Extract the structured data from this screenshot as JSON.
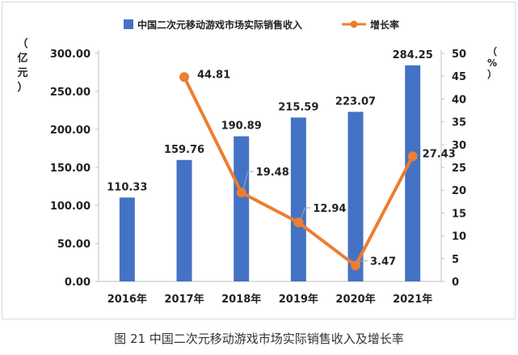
{
  "caption": "图 21 中国二次元移动游戏市场实际销售收入及增长率",
  "chart_data": {
    "type": "bar+line",
    "categories": [
      "2016年",
      "2017年",
      "2018年",
      "2019年",
      "2020年",
      "2021年"
    ],
    "series": [
      {
        "name": "中国二次元移动游戏市场实际销售收入",
        "type": "bar",
        "axis": "left",
        "values": [
          110.33,
          159.76,
          190.89,
          215.59,
          223.07,
          284.25
        ],
        "labels": [
          "110.33",
          "159.76",
          "190.89",
          "215.59",
          "223.07",
          "284.25"
        ]
      },
      {
        "name": "增长率",
        "type": "line",
        "axis": "right",
        "values": [
          null,
          44.81,
          19.48,
          12.94,
          3.47,
          27.43
        ],
        "labels": [
          "",
          "44.81",
          "19.48",
          "12.94",
          "3.47",
          "27.43"
        ]
      }
    ],
    "left_axis": {
      "label_chars": [
        "（",
        "亿",
        "元",
        "）"
      ],
      "ylim": [
        0,
        300
      ],
      "ticks": [
        "0.00",
        "50.00",
        "100.00",
        "150.00",
        "200.00",
        "250.00",
        "300.00"
      ]
    },
    "right_axis": {
      "label_chars": [
        "（",
        "%",
        "）"
      ],
      "ylim": [
        0,
        50
      ],
      "ticks": [
        "0",
        "5",
        "10",
        "15",
        "20",
        "25",
        "30",
        "35",
        "40",
        "45",
        "50"
      ]
    },
    "colors": {
      "bar": "#4472C4",
      "line": "#ED7D31",
      "axis": "#bfbfbf",
      "text": "#222222",
      "leader": "#a6a6a6"
    },
    "legend_position": "top-center",
    "grid": false
  }
}
